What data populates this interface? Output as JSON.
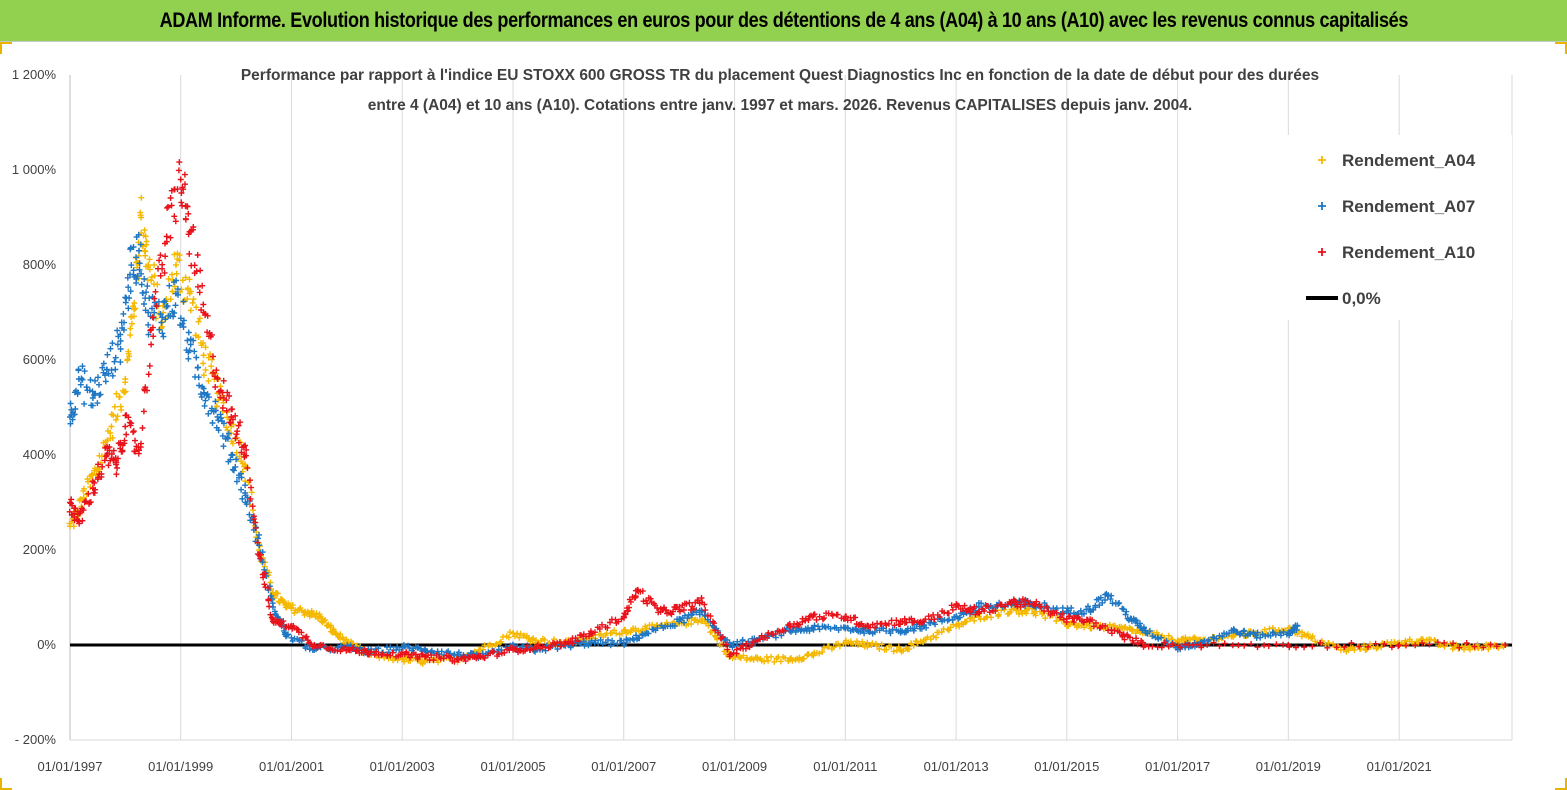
{
  "banner": {
    "title": "ADAM Informe. Evolution historique des performances en euros pour des détentions de 4 ans (A04) à 10 ans (A10) avec les revenus connus capitalisés"
  },
  "colors": {
    "banner_bg": "#92d050",
    "a04": "#f5b800",
    "a07": "#1f77c4",
    "a10": "#e8121b",
    "zero_line": "#000000",
    "gridline": "#d9d9d9"
  },
  "chart_data": {
    "type": "scatter",
    "title_lines": [
      "Performance par rapport à l'indice EU STOXX 600 GROSS TR  du placement Quest Diagnostics Inc en fonction de la date de début pour des durées",
      "entre 4 (A04) et 10 ans (A10). Cotations entre janv. 1997 et mars. 2026. Revenus CAPITALISES depuis janv. 2004."
    ],
    "ylim": [
      -200,
      1200
    ],
    "y_ticks": [
      -200,
      0,
      200,
      400,
      600,
      800,
      1000,
      1200
    ],
    "y_tick_labels": [
      "- 200%",
      "0%",
      "200%",
      "400%",
      "600%",
      "800%",
      "1 000%",
      "1 200%"
    ],
    "xlim": [
      "1997-01-01",
      "2023-01-15"
    ],
    "x_ticks": [
      "1997-01-01",
      "1999-01-01",
      "2001-01-01",
      "2003-01-01",
      "2005-01-01",
      "2007-01-01",
      "2009-01-01",
      "2011-01-01",
      "2013-01-01",
      "2015-01-01",
      "2017-01-01",
      "2019-01-01",
      "2021-01-01"
    ],
    "x_tick_labels": [
      "01/01/1997",
      "01/01/1999",
      "01/01/2001",
      "01/01/2003",
      "01/01/2005",
      "01/01/2007",
      "01/01/2009",
      "01/01/2011",
      "01/01/2013",
      "01/01/2015",
      "01/01/2017",
      "01/01/2019",
      "01/01/2021"
    ],
    "grid": "vertical",
    "legend_position": "top-right",
    "legend": [
      {
        "label": "Rendement_A04",
        "marker": "plus",
        "color": "#f5b800"
      },
      {
        "label": "Rendement_A07",
        "marker": "plus",
        "color": "#1f77c4"
      },
      {
        "label": "Rendement_A10",
        "marker": "plus",
        "color": "#e8121b"
      },
      {
        "label": "0,0%",
        "marker": "line",
        "color": "#000000"
      }
    ],
    "reference_line": {
      "name": "0,0%",
      "y": 0
    },
    "series": [
      {
        "name": "Rendement_A04",
        "color": "#f5b800",
        "points": [
          [
            "1997-01-01",
            250
          ],
          [
            "1997-04-01",
            310
          ],
          [
            "1997-07-01",
            370
          ],
          [
            "1997-10-01",
            460
          ],
          [
            "1998-01-01",
            560
          ],
          [
            "1998-03-01",
            720
          ],
          [
            "1998-04-15",
            900
          ],
          [
            "1998-06-01",
            800
          ],
          [
            "1998-09-01",
            680
          ],
          [
            "1998-12-01",
            800
          ],
          [
            "1999-03-01",
            740
          ],
          [
            "1999-06-01",
            610
          ],
          [
            "1999-09-01",
            530
          ],
          [
            "1999-12-01",
            460
          ],
          [
            "2000-03-01",
            380
          ],
          [
            "2000-06-01",
            200
          ],
          [
            "2000-09-01",
            110
          ],
          [
            "2000-12-01",
            80
          ],
          [
            "2001-04-01",
            70
          ],
          [
            "2001-07-01",
            60
          ],
          [
            "2001-10-01",
            30
          ],
          [
            "2002-01-01",
            5
          ],
          [
            "2002-06-01",
            -20
          ],
          [
            "2003-01-01",
            -30
          ],
          [
            "2003-06-01",
            -35
          ],
          [
            "2004-01-01",
            -30
          ],
          [
            "2004-06-01",
            -10
          ],
          [
            "2005-01-01",
            25
          ],
          [
            "2005-06-01",
            10
          ],
          [
            "2006-01-01",
            5
          ],
          [
            "2006-06-01",
            15
          ],
          [
            "2007-01-01",
            30
          ],
          [
            "2007-06-01",
            35
          ],
          [
            "2008-01-01",
            45
          ],
          [
            "2008-06-01",
            55
          ],
          [
            "2008-12-01",
            -25
          ],
          [
            "2009-06-01",
            -30
          ],
          [
            "2010-01-01",
            -30
          ],
          [
            "2010-06-01",
            -20
          ],
          [
            "2011-01-01",
            5
          ],
          [
            "2011-06-01",
            0
          ],
          [
            "2012-01-01",
            -10
          ],
          [
            "2012-06-01",
            10
          ],
          [
            "2013-01-01",
            40
          ],
          [
            "2013-06-01",
            60
          ],
          [
            "2014-01-01",
            75
          ],
          [
            "2014-06-01",
            70
          ],
          [
            "2015-01-01",
            45
          ],
          [
            "2015-06-01",
            40
          ],
          [
            "2016-01-01",
            35
          ],
          [
            "2016-06-01",
            25
          ],
          [
            "2017-01-01",
            10
          ],
          [
            "2017-06-01",
            10
          ],
          [
            "2018-01-01",
            20
          ],
          [
            "2018-06-01",
            25
          ],
          [
            "2019-01-01",
            35
          ],
          [
            "2019-06-01",
            15
          ],
          [
            "2020-01-01",
            -10
          ],
          [
            "2020-06-01",
            -5
          ],
          [
            "2021-01-01",
            5
          ],
          [
            "2021-06-01",
            10
          ],
          [
            "2022-01-01",
            -5
          ],
          [
            "2022-06-01",
            -5
          ],
          [
            "2022-12-01",
            0
          ]
        ]
      },
      {
        "name": "Rendement_A07",
        "color": "#1f77c4",
        "points": [
          [
            "1997-01-01",
            480
          ],
          [
            "1997-03-01",
            560
          ],
          [
            "1997-06-01",
            520
          ],
          [
            "1997-09-01",
            580
          ],
          [
            "1997-12-01",
            640
          ],
          [
            "1998-02-01",
            780
          ],
          [
            "1998-04-01",
            830
          ],
          [
            "1998-06-01",
            700
          ],
          [
            "1998-09-01",
            690
          ],
          [
            "1998-12-01",
            740
          ],
          [
            "1999-03-01",
            620
          ],
          [
            "1999-06-01",
            540
          ],
          [
            "1999-09-01",
            480
          ],
          [
            "1999-12-01",
            400
          ],
          [
            "2000-03-01",
            320
          ],
          [
            "2000-06-01",
            210
          ],
          [
            "2000-09-01",
            80
          ],
          [
            "2000-12-01",
            20
          ],
          [
            "2001-06-01",
            -10
          ],
          [
            "2002-01-01",
            -5
          ],
          [
            "2002-06-01",
            -15
          ],
          [
            "2003-01-01",
            -5
          ],
          [
            "2003-06-01",
            -10
          ],
          [
            "2004-01-01",
            -20
          ],
          [
            "2004-06-01",
            -25
          ],
          [
            "2005-01-01",
            -5
          ],
          [
            "2005-06-01",
            -10
          ],
          [
            "2006-01-01",
            0
          ],
          [
            "2006-06-01",
            5
          ],
          [
            "2007-01-01",
            5
          ],
          [
            "2007-06-01",
            25
          ],
          [
            "2008-01-01",
            50
          ],
          [
            "2008-06-01",
            70
          ],
          [
            "2008-12-01",
            0
          ],
          [
            "2009-06-01",
            10
          ],
          [
            "2010-01-01",
            30
          ],
          [
            "2010-06-01",
            35
          ],
          [
            "2011-01-01",
            35
          ],
          [
            "2011-06-01",
            30
          ],
          [
            "2012-01-01",
            30
          ],
          [
            "2012-06-01",
            40
          ],
          [
            "2013-01-01",
            60
          ],
          [
            "2013-06-01",
            80
          ],
          [
            "2014-01-01",
            85
          ],
          [
            "2014-06-01",
            85
          ],
          [
            "2015-01-01",
            70
          ],
          [
            "2015-06-01",
            75
          ],
          [
            "2015-10-01",
            105
          ],
          [
            "2016-03-01",
            55
          ],
          [
            "2016-06-01",
            30
          ],
          [
            "2017-01-01",
            -5
          ],
          [
            "2017-06-01",
            5
          ],
          [
            "2018-01-01",
            30
          ],
          [
            "2018-06-01",
            20
          ],
          [
            "2019-01-01",
            25
          ],
          [
            "2019-03-01",
            40
          ]
        ]
      },
      {
        "name": "Rendement_A10",
        "color": "#e8121b",
        "points": [
          [
            "1997-01-01",
            300
          ],
          [
            "1997-03-01",
            260
          ],
          [
            "1997-06-01",
            330
          ],
          [
            "1997-09-01",
            400
          ],
          [
            "1997-11-01",
            380
          ],
          [
            "1998-01-01",
            460
          ],
          [
            "1998-04-01",
            410
          ],
          [
            "1998-07-01",
            690
          ],
          [
            "1998-10-01",
            860
          ],
          [
            "1999-01-01",
            980
          ],
          [
            "1999-03-01",
            870
          ],
          [
            "1999-06-01",
            700
          ],
          [
            "1999-09-01",
            560
          ],
          [
            "1999-12-01",
            480
          ],
          [
            "2000-03-01",
            420
          ],
          [
            "2000-06-01",
            190
          ],
          [
            "2000-09-01",
            50
          ],
          [
            "2001-01-01",
            40
          ],
          [
            "2001-06-01",
            0
          ],
          [
            "2002-01-01",
            -10
          ],
          [
            "2002-06-01",
            -15
          ],
          [
            "2003-01-01",
            -20
          ],
          [
            "2003-06-01",
            -25
          ],
          [
            "2004-01-01",
            -30
          ],
          [
            "2004-06-01",
            -25
          ],
          [
            "2005-01-01",
            -10
          ],
          [
            "2005-06-01",
            -5
          ],
          [
            "2006-01-01",
            5
          ],
          [
            "2006-06-01",
            25
          ],
          [
            "2007-01-01",
            60
          ],
          [
            "2007-04-01",
            115
          ],
          [
            "2007-09-01",
            70
          ],
          [
            "2008-01-01",
            75
          ],
          [
            "2008-06-01",
            90
          ],
          [
            "2008-12-01",
            -20
          ],
          [
            "2009-06-01",
            10
          ],
          [
            "2010-01-01",
            40
          ],
          [
            "2010-06-01",
            60
          ],
          [
            "2011-01-01",
            60
          ],
          [
            "2011-06-01",
            40
          ],
          [
            "2012-01-01",
            50
          ],
          [
            "2012-06-01",
            50
          ],
          [
            "2013-01-01",
            80
          ],
          [
            "2013-06-01",
            70
          ],
          [
            "2014-01-01",
            90
          ],
          [
            "2014-06-01",
            85
          ],
          [
            "2015-01-01",
            55
          ],
          [
            "2015-06-01",
            50
          ],
          [
            "2016-01-01",
            20
          ],
          [
            "2016-06-01",
            0
          ],
          [
            "2017-06-01",
            0
          ],
          [
            "2019-01-01",
            0
          ],
          [
            "2021-01-01",
            0
          ],
          [
            "2022-12-01",
            0
          ]
        ]
      }
    ]
  }
}
